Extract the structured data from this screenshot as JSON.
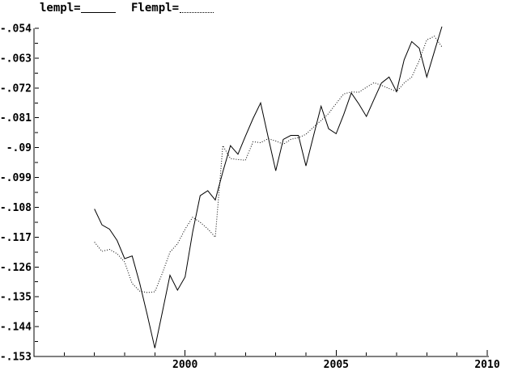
{
  "window": {
    "background": "#ffffff",
    "foreground": "#000000"
  },
  "legend": {
    "items": [
      {
        "label": "lempl=",
        "line_style": "solid"
      },
      {
        "label": "Flempl=",
        "line_style": "dotted"
      }
    ]
  },
  "chart_data": {
    "type": "line",
    "title": "",
    "xlabel": "",
    "ylabel": "",
    "grid": false,
    "legend_position": "top-left",
    "xlim": [
      1995,
      2010
    ],
    "ylim": [
      -0.153,
      -0.054
    ],
    "x_ticks": [
      {
        "value": 2000,
        "label": "2000"
      },
      {
        "value": 2005,
        "label": "2005"
      },
      {
        "value": 2010,
        "label": "2010"
      }
    ],
    "x_minor_tick_every_years": 1,
    "y_ticks": [
      {
        "value": -0.054,
        "label": "-.054"
      },
      {
        "value": -0.063,
        "label": "-.063"
      },
      {
        "value": -0.072,
        "label": "-.072"
      },
      {
        "value": -0.081,
        "label": "-.081"
      },
      {
        "value": -0.09,
        "label": "-.09"
      },
      {
        "value": -0.099,
        "label": "-.099"
      },
      {
        "value": -0.108,
        "label": "-.108"
      },
      {
        "value": -0.117,
        "label": "-.117"
      },
      {
        "value": -0.126,
        "label": "-.126"
      },
      {
        "value": -0.135,
        "label": "-.135"
      },
      {
        "value": -0.144,
        "label": "-.144"
      },
      {
        "value": -0.153,
        "label": "-.153"
      }
    ],
    "y_minor_step": 0.0045,
    "x": [
      1997.0,
      1997.25,
      1997.5,
      1997.75,
      1998.0,
      1998.25,
      1998.5,
      1998.75,
      1999.0,
      1999.25,
      1999.5,
      1999.75,
      2000.0,
      2000.25,
      2000.5,
      2000.75,
      2001.0,
      2001.25,
      2001.5,
      2001.75,
      2002.0,
      2002.25,
      2002.5,
      2002.75,
      2003.0,
      2003.25,
      2003.5,
      2003.75,
      2004.0,
      2004.25,
      2004.5,
      2004.75,
      2005.0,
      2005.25,
      2005.5,
      2005.75,
      2006.0,
      2006.25,
      2006.5,
      2006.75,
      2007.0,
      2007.25,
      2007.5,
      2007.75,
      2008.0,
      2008.25,
      2008.5
    ],
    "series": [
      {
        "name": "lempl",
        "line_style": "solid",
        "color": "#000000",
        "values": [
          -0.1085,
          -0.1133,
          -0.1146,
          -0.118,
          -0.1235,
          -0.1227,
          -0.131,
          -0.1405,
          -0.1505,
          -0.1395,
          -0.1285,
          -0.133,
          -0.129,
          -0.1155,
          -0.1045,
          -0.103,
          -0.1058,
          -0.0973,
          -0.0894,
          -0.092,
          -0.0865,
          -0.0812,
          -0.0765,
          -0.0868,
          -0.097,
          -0.0875,
          -0.0863,
          -0.0863,
          -0.0955,
          -0.0865,
          -0.0775,
          -0.0843,
          -0.0858,
          -0.08,
          -0.0735,
          -0.0768,
          -0.0806,
          -0.0755,
          -0.0705,
          -0.0687,
          -0.0731,
          -0.0635,
          -0.058,
          -0.06,
          -0.0687,
          -0.061,
          -0.0535
        ]
      },
      {
        "name": "Flempl",
        "line_style": "dotted",
        "color": "#000000",
        "values": [
          -0.1185,
          -0.1213,
          -0.1207,
          -0.122,
          -0.1245,
          -0.131,
          -0.1333,
          -0.1337,
          -0.1335,
          -0.1278,
          -0.1215,
          -0.119,
          -0.1146,
          -0.111,
          -0.1125,
          -0.1145,
          -0.117,
          -0.0894,
          -0.0933,
          -0.0936,
          -0.0938,
          -0.0882,
          -0.0885,
          -0.0873,
          -0.088,
          -0.089,
          -0.0875,
          -0.087,
          -0.086,
          -0.0838,
          -0.0818,
          -0.0797,
          -0.0767,
          -0.0738,
          -0.0732,
          -0.0733,
          -0.0718,
          -0.0704,
          -0.0712,
          -0.0722,
          -0.0731,
          -0.0705,
          -0.0687,
          -0.0637,
          -0.0575,
          -0.0564,
          -0.0596
        ]
      }
    ]
  }
}
